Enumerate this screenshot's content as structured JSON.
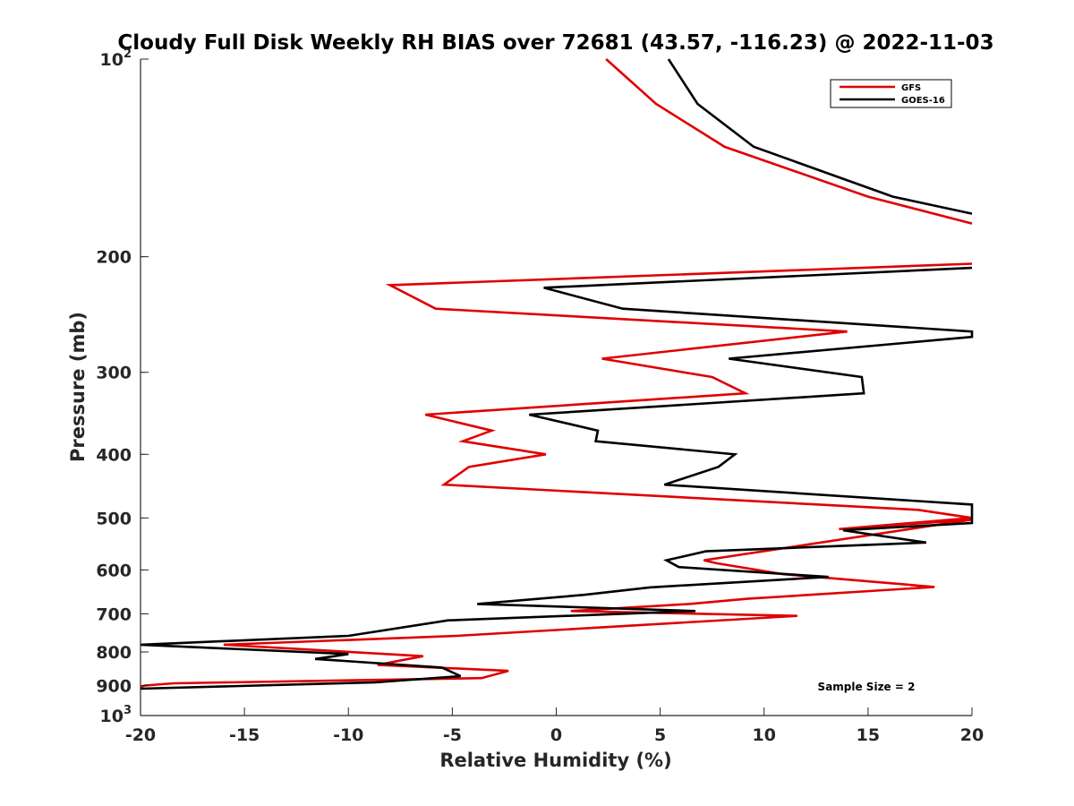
{
  "chart_data": {
    "type": "line",
    "title": "Cloudy Full Disk Weekly RH BIAS over 72681 (43.57, -116.23) @ 2022-11-03",
    "xlabel": "Relative Humidity (%)",
    "ylabel": "Pressure (mb)",
    "xlim": [
      -20,
      20
    ],
    "ylim": [
      100,
      1000
    ],
    "y_scale": "log",
    "y_reversed": true,
    "grid": false,
    "legend_position": "top-right",
    "x_ticks": [
      "-20",
      "-15",
      "-10",
      "-5",
      "0",
      "5",
      "10",
      "15",
      "20"
    ],
    "y_ticks": [
      {
        "base": "10",
        "exp": "2",
        "value": 100
      },
      {
        "base": "200",
        "exp": "",
        "value": 200
      },
      {
        "base": "300",
        "exp": "",
        "value": 300
      },
      {
        "base": "400",
        "exp": "",
        "value": 400
      },
      {
        "base": "500",
        "exp": "",
        "value": 500
      },
      {
        "base": "600",
        "exp": "",
        "value": 600
      },
      {
        "base": "700",
        "exp": "",
        "value": 700
      },
      {
        "base": "800",
        "exp": "",
        "value": 800
      },
      {
        "base": "900",
        "exp": "",
        "value": 900
      },
      {
        "base": "10",
        "exp": "3",
        "value": 1000
      }
    ],
    "annotation": "Sample Size = 2",
    "series": [
      {
        "name": "GFS",
        "color": "#e00000",
        "segments": [
          [
            [
              2.4,
              100
            ],
            [
              4.8,
              117
            ],
            [
              8.1,
              136
            ],
            [
              15.0,
              162
            ],
            [
              20.0,
              178
            ]
          ],
          [
            [
              20.0,
              205
            ],
            [
              -8.0,
              221
            ],
            [
              -5.8,
              240
            ],
            [
              14.0,
              260
            ],
            [
              2.2,
              286
            ],
            [
              7.5,
              305
            ],
            [
              9.1,
              323
            ],
            [
              -6.3,
              348
            ],
            [
              -3.1,
              368
            ],
            [
              -4.5,
              382
            ],
            [
              -0.5,
              400
            ],
            [
              -4.2,
              418
            ],
            [
              -5.4,
              445
            ],
            [
              17.4,
              486
            ],
            [
              20.0,
              500
            ],
            [
              13.6,
              520
            ],
            [
              20.0,
              503
            ],
            [
              7.1,
              580
            ],
            [
              7.7,
              586
            ],
            [
              10.9,
              609
            ],
            [
              18.2,
              637
            ],
            [
              9.2,
              664
            ],
            [
              6.4,
              676
            ],
            [
              0.7,
              693
            ],
            [
              11.6,
              705
            ],
            [
              -4.8,
              756
            ],
            [
              -16.0,
              780
            ],
            [
              -6.4,
              812
            ],
            [
              -8.6,
              837
            ],
            [
              -2.3,
              855
            ],
            [
              -3.6,
              877
            ],
            [
              -18.4,
              893
            ],
            [
              -19.8,
              900
            ],
            [
              -20.0,
              905
            ]
          ]
        ]
      },
      {
        "name": "GOES-16",
        "color": "#000000",
        "segments": [
          [
            [
              5.4,
              100
            ],
            [
              6.8,
              117
            ],
            [
              9.5,
              136
            ],
            [
              16.2,
              162
            ],
            [
              20.0,
              172
            ]
          ],
          [
            [
              20.0,
              208
            ],
            [
              -0.6,
              223
            ],
            [
              3.2,
              240
            ],
            [
              20.0,
              260
            ],
            [
              20.0,
              265
            ],
            [
              8.3,
              286
            ],
            [
              14.7,
              305
            ],
            [
              14.8,
              323
            ],
            [
              -1.3,
              348
            ],
            [
              2.0,
              368
            ],
            [
              1.9,
              382
            ],
            [
              8.6,
              400
            ],
            [
              7.8,
              418
            ],
            [
              5.2,
              445
            ],
            [
              20.0,
              477
            ],
            [
              20.0,
              509
            ],
            [
              13.8,
              522
            ],
            [
              17.8,
              545
            ],
            [
              7.2,
              562
            ],
            [
              5.3,
              580
            ],
            [
              5.9,
              594
            ],
            [
              13.1,
              615
            ],
            [
              4.5,
              638
            ],
            [
              1.3,
              655
            ],
            [
              -3.8,
              676
            ],
            [
              6.7,
              693
            ],
            [
              -5.2,
              716
            ],
            [
              -10.0,
              756
            ],
            [
              -20.0,
              780
            ],
            [
              -10.0,
              806
            ],
            [
              -11.6,
              820
            ],
            [
              -5.5,
              845
            ],
            [
              -4.6,
              871
            ],
            [
              -8.7,
              890
            ],
            [
              -20.0,
              910
            ]
          ]
        ]
      }
    ]
  }
}
